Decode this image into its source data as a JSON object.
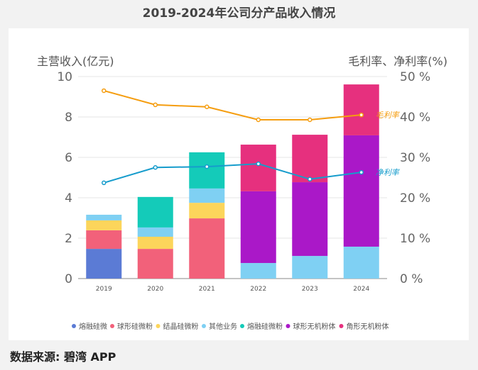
{
  "title": "2019-2024年公司分产品收入情况",
  "source": "数据来源: 碧湾 APP",
  "chart_data": {
    "type": "bar",
    "categories": [
      "2019",
      "2020",
      "2021",
      "2022",
      "2023",
      "2024"
    ],
    "ylabel": "主营收入(亿元)",
    "y2label": "毛利率、净利率(%)",
    "ylim": [
      0,
      10
    ],
    "y2lim": [
      0,
      50
    ],
    "yticks": [
      "0",
      "2",
      "4",
      "6",
      "8",
      "10"
    ],
    "y2ticks": [
      "0 %",
      "10 %",
      "20 %",
      "30 %",
      "40 %",
      "50 %"
    ],
    "grid": true,
    "legend": "bottom",
    "series": [
      {
        "name": "熔融硅微",
        "color": "#5b7bd5",
        "values": [
          1.47,
          0,
          0,
          0,
          0,
          0
        ]
      },
      {
        "name": "球形硅微粉",
        "color": "#f2617a",
        "values": [
          0.92,
          1.47,
          2.98,
          0,
          0,
          0
        ]
      },
      {
        "name": "结晶硅微粉",
        "color": "#fcd55b",
        "values": [
          0.49,
          0.6,
          0.77,
          0,
          0,
          0
        ]
      },
      {
        "name": "其他业务",
        "color": "#7fd0f3",
        "values": [
          0.28,
          0.46,
          0.71,
          0.77,
          1.12,
          1.58
        ]
      },
      {
        "name": "熔融硅微粉",
        "color": "#14cbb9",
        "values": [
          0,
          1.51,
          1.79,
          0,
          0,
          0
        ]
      },
      {
        "name": "球形无机粉体",
        "color": "#aa18c8",
        "values": [
          0,
          0,
          0,
          3.55,
          3.65,
          5.51
        ]
      },
      {
        "name": "角形无机粉体",
        "color": "#e6307e",
        "values": [
          0,
          0,
          0,
          2.31,
          2.35,
          2.52
        ]
      }
    ],
    "lines": [
      {
        "name": "毛利率",
        "color": "#f59d0f",
        "values": [
          46.5,
          43,
          42.5,
          39.3,
          39.3,
          40.5
        ]
      },
      {
        "name": "净利率",
        "color": "#169ccc",
        "values": [
          23.7,
          27.5,
          27.7,
          28.4,
          24.6,
          26.3
        ]
      }
    ]
  }
}
